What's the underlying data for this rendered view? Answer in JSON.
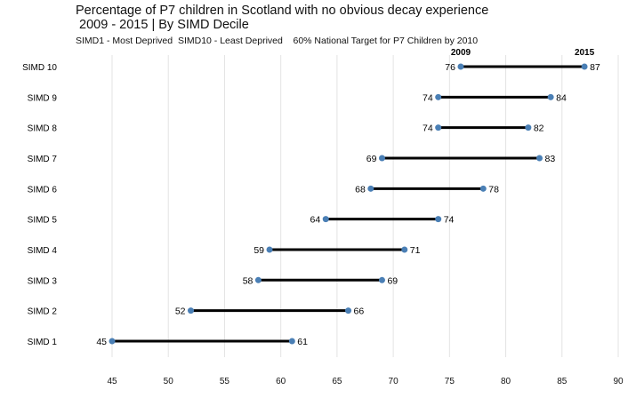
{
  "chart_data": {
    "type": "dumbbell",
    "title": "Percentage of P7 children in Scotland with no obvious decay experience",
    "subtitle": " 2009 - 2015 | By SIMD Decile",
    "note": "SIMD1 - Most Deprived  SIMD10 - Least Deprived    60% National Target for P7 Children by 2010",
    "series_labels": [
      "2009",
      "2015"
    ],
    "categories": [
      "SIMD 10",
      "SIMD 9",
      "SIMD 8",
      "SIMD 7",
      "SIMD 6",
      "SIMD 5",
      "SIMD 4",
      "SIMD 3",
      "SIMD 2",
      "SIMD 1"
    ],
    "series": [
      {
        "name": "2009",
        "values": [
          76,
          74,
          74,
          69,
          68,
          64,
          59,
          58,
          52,
          45
        ]
      },
      {
        "name": "2015",
        "values": [
          87,
          84,
          82,
          83,
          78,
          74,
          71,
          69,
          66,
          61
        ]
      }
    ],
    "xticks": [
      45,
      50,
      55,
      60,
      65,
      70,
      75,
      80,
      85,
      90
    ],
    "xlim": [
      45,
      90
    ],
    "grid": true,
    "colors": {
      "dot": "#4a7fb5",
      "line": "#000000",
      "grid": "#e3e3e3"
    }
  }
}
